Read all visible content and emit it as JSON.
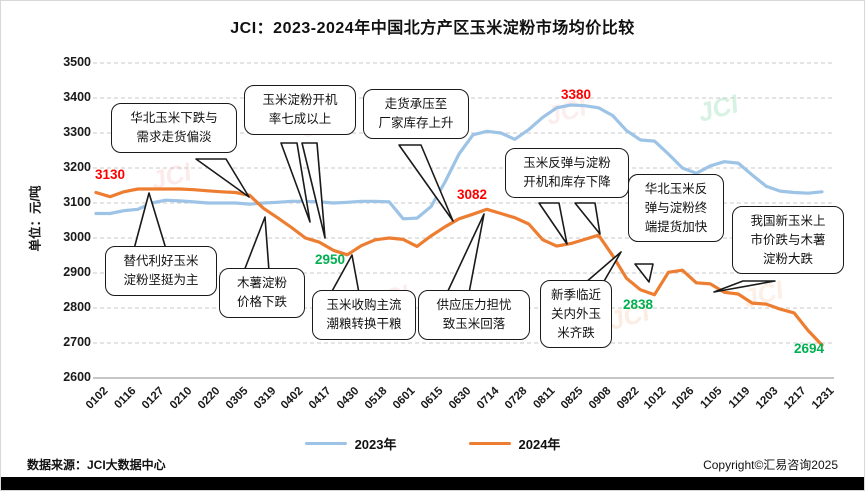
{
  "title": "JCI：2023-2024年中国北方产区玉米淀粉市场均价比较",
  "y_axis_title": "单位：元/吨",
  "watermark": "JCI",
  "footer": {
    "source": "数据来源：JCI大数据中心",
    "copyright": "Copyright©汇易咨询2025"
  },
  "legend": [
    {
      "label": "2023年",
      "color": "#9DC3E6"
    },
    {
      "label": "2024年",
      "color": "#ED7D31"
    }
  ],
  "chart_data": {
    "type": "line",
    "title": "JCI：2023-2024年中国北方产区玉米淀粉市场均价比较",
    "ylabel": "单位：元/吨",
    "ylim": [
      2600,
      3500
    ],
    "y_ticks": [
      3500,
      3400,
      3300,
      3200,
      3100,
      3000,
      2900,
      2800,
      2700,
      2600
    ],
    "grid": "horizontal-dashed",
    "legend_position": "bottom",
    "categories": [
      "0102",
      "0116",
      "0127",
      "0210",
      "0220",
      "0305",
      "0319",
      "0402",
      "0417",
      "0430",
      "0518",
      "0601",
      "0615",
      "0630",
      "0714",
      "0728",
      "0811",
      "0825",
      "0908",
      "0922",
      "1012",
      "1026",
      "1105",
      "1119",
      "1203",
      "1217",
      "1231"
    ],
    "series": [
      {
        "name": "2023年",
        "color": "#9DC3E6",
        "values": [
          3070,
          3070,
          3078,
          3082,
          3100,
          3108,
          3106,
          3103,
          3100,
          3100,
          3100,
          3097,
          3100,
          3102,
          3105,
          3105,
          3103,
          3100,
          3102,
          3105,
          3105,
          3103,
          3055,
          3057,
          3090,
          3160,
          3240,
          3295,
          3305,
          3300,
          3282,
          3310,
          3345,
          3372,
          3380,
          3378,
          3372,
          3350,
          3307,
          3280,
          3277,
          3240,
          3200,
          3185,
          3206,
          3218,
          3214,
          3180,
          3148,
          3134,
          3130,
          3128,
          3132
        ]
      },
      {
        "name": "2024年",
        "color": "#ED7D31",
        "values": [
          3130,
          3118,
          3132,
          3140,
          3140,
          3140,
          3140,
          3138,
          3135,
          3132,
          3130,
          3122,
          3085,
          3058,
          3030,
          3000,
          2988,
          2965,
          2952,
          2978,
          2995,
          3000,
          2996,
          2976,
          3006,
          3032,
          3055,
          3068,
          3082,
          3070,
          3058,
          3040,
          2995,
          2977,
          2984,
          2996,
          3008,
          2950,
          2885,
          2852,
          2838,
          2902,
          2908,
          2872,
          2869,
          2845,
          2840,
          2814,
          2811,
          2797,
          2786,
          2736,
          2694
        ]
      }
    ],
    "point_labels": [
      {
        "text": "3130",
        "color": "#FF0000",
        "series": "2024年",
        "category": "0102"
      },
      {
        "text": "3380",
        "color": "#FF0000",
        "series": "2023年",
        "category": "0825"
      },
      {
        "text": "3082",
        "color": "#FF0000",
        "series": "2024年",
        "category": "0714"
      },
      {
        "text": "2950",
        "color": "#00B050",
        "series": "2024年",
        "category": "0430"
      },
      {
        "text": "2838",
        "color": "#00B050",
        "series": "2024年",
        "category": "1012"
      },
      {
        "text": "2694",
        "color": "#00B050",
        "series": "2024年",
        "category": "1231"
      }
    ],
    "annotations": [
      {
        "text": "华北玉米下跌与\n需求走货偏淡"
      },
      {
        "text": "玉米淀粉开机\n率七成以上"
      },
      {
        "text": "走货承压至\n厂家库存上升"
      },
      {
        "text": "替代利好玉米\n淀粉坚挺为主"
      },
      {
        "text": "木薯淀粉\n价格下跌"
      },
      {
        "text": "玉米收购主流\n潮粮转换干粮"
      },
      {
        "text": "供应压力担忧\n致玉米回落"
      },
      {
        "text": "新季临近\n关内外玉\n米齐跌"
      },
      {
        "text": "玉米反弹与淀粉\n开机和库存下降"
      },
      {
        "text": "华北玉米反\n弹与淀粉终\n端提货加快"
      },
      {
        "text": "我国新玉米上\n市价跌与木薯\n淀粉大跌"
      }
    ]
  }
}
